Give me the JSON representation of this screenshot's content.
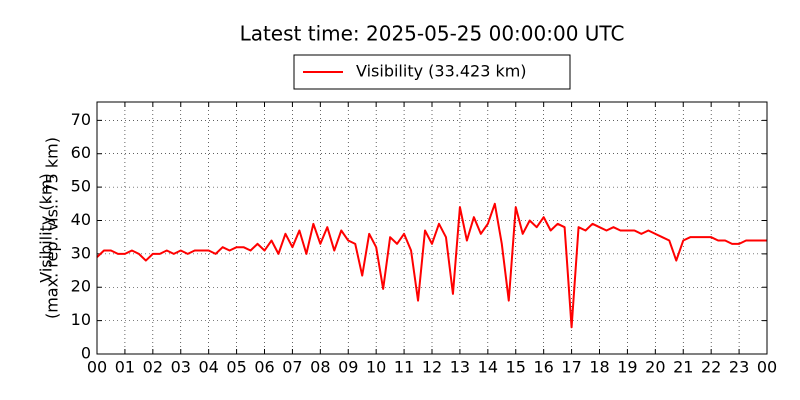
{
  "chart_data": {
    "type": "line",
    "title": "Latest time: 2025-05-25 00:00:00 UTC",
    "ylabel": [
      "Visibility (km)",
      "(max. rep. vis.: 75 km)"
    ],
    "x": [
      0,
      0.25,
      0.5,
      0.75,
      1,
      1.25,
      1.5,
      1.75,
      2,
      2.25,
      2.5,
      2.75,
      3,
      3.25,
      3.5,
      3.75,
      4,
      4.25,
      4.5,
      4.75,
      5,
      5.25,
      5.5,
      5.75,
      6,
      6.25,
      6.5,
      6.75,
      7,
      7.25,
      7.5,
      7.75,
      8,
      8.25,
      8.5,
      8.75,
      9,
      9.25,
      9.5,
      9.75,
      10,
      10.25,
      10.5,
      10.75,
      11,
      11.25,
      11.5,
      11.75,
      12,
      12.25,
      12.5,
      12.75,
      13,
      13.25,
      13.5,
      13.75,
      14,
      14.25,
      14.5,
      14.75,
      15,
      15.25,
      15.5,
      15.75,
      16,
      16.25,
      16.5,
      16.75,
      17,
      17.25,
      17.5,
      17.75,
      18,
      18.25,
      18.5,
      18.75,
      19,
      19.25,
      19.5,
      19.75,
      20,
      20.25,
      20.5,
      20.75,
      21,
      21.25,
      21.5,
      21.75,
      22,
      22.25,
      22.5,
      22.75,
      23,
      23.25,
      23.5,
      23.75,
      24
    ],
    "series": [
      {
        "name": "Visibility (33.423 km)",
        "color": "#ff0000",
        "values": [
          29,
          31,
          31,
          30,
          30,
          31,
          30,
          28,
          30,
          30,
          31,
          30,
          31,
          30,
          31,
          31,
          31,
          30,
          32,
          31,
          32,
          32,
          31,
          33,
          31,
          34,
          30,
          36,
          32,
          37,
          30,
          39,
          33,
          38,
          31,
          37,
          34,
          33,
          23.5,
          36,
          32,
          19.5,
          35,
          33,
          36,
          31,
          16,
          37,
          33,
          39,
          35,
          18,
          44,
          34,
          41,
          36,
          39,
          45,
          33,
          16,
          44,
          36,
          40,
          38,
          41,
          37,
          39,
          38,
          8,
          38,
          37,
          39,
          38,
          37,
          38,
          37,
          37,
          37,
          36,
          37,
          36,
          35,
          34,
          28,
          34,
          35,
          35,
          35,
          35,
          34,
          34,
          33,
          33,
          34,
          34,
          34,
          34
        ]
      }
    ],
    "xlim": [
      0,
      24
    ],
    "xticks": [
      {
        "value": 0,
        "label": "00"
      },
      {
        "value": 1,
        "label": "01"
      },
      {
        "value": 2,
        "label": "02"
      },
      {
        "value": 3,
        "label": "03"
      },
      {
        "value": 4,
        "label": "04"
      },
      {
        "value": 5,
        "label": "05"
      },
      {
        "value": 6,
        "label": "06"
      },
      {
        "value": 7,
        "label": "07"
      },
      {
        "value": 8,
        "label": "08"
      },
      {
        "value": 9,
        "label": "09"
      },
      {
        "value": 10,
        "label": "10"
      },
      {
        "value": 11,
        "label": "11"
      },
      {
        "value": 12,
        "label": "12"
      },
      {
        "value": 13,
        "label": "13"
      },
      {
        "value": 14,
        "label": "14"
      },
      {
        "value": 15,
        "label": "15"
      },
      {
        "value": 16,
        "label": "16"
      },
      {
        "value": 17,
        "label": "17"
      },
      {
        "value": 18,
        "label": "18"
      },
      {
        "value": 19,
        "label": "19"
      },
      {
        "value": 20,
        "label": "20"
      },
      {
        "value": 21,
        "label": "21"
      },
      {
        "value": 22,
        "label": "22"
      },
      {
        "value": 23,
        "label": "23"
      },
      {
        "value": 24,
        "label": "00"
      }
    ],
    "ylim": [
      0,
      75.5
    ],
    "yticks": [
      0,
      10,
      20,
      30,
      40,
      50,
      60,
      70
    ],
    "grid": true
  }
}
